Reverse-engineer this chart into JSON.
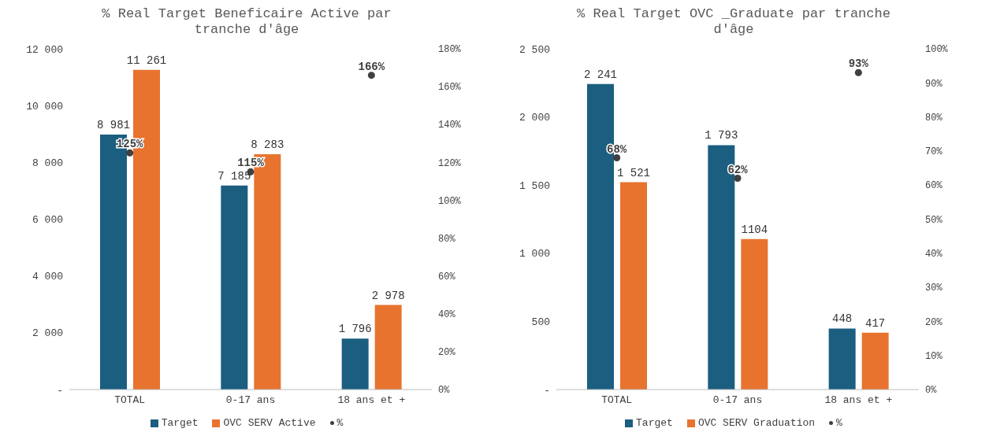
{
  "chart_data": [
    {
      "type": "bar",
      "title": "% Real Target Beneficaire Active par tranche d'âge",
      "categories": [
        "TOTAL",
        "0-17 ans",
        "18 ans et +"
      ],
      "series": [
        {
          "name": "Target",
          "color": "#1b5e80",
          "values": [
            8981,
            7185,
            1796
          ],
          "value_labels": [
            "8 981",
            "7 185",
            "1 796"
          ]
        },
        {
          "name": "OVC SERV Active",
          "color": "#e8732f",
          "values": [
            11261,
            8283,
            2978
          ],
          "value_labels": [
            "11 261",
            "8 283",
            "2 978"
          ]
        },
        {
          "name": "%",
          "type": "scatter",
          "marker": "circle",
          "axis": "y2",
          "color": "#404040",
          "values": [
            125,
            115,
            166
          ],
          "value_labels": [
            "125%",
            "115%",
            "166%"
          ]
        }
      ],
      "ylim": [
        0,
        12000
      ],
      "yticks": [
        {
          "value": 0,
          "label": "-"
        },
        {
          "value": 2000,
          "label": "2 000"
        },
        {
          "value": 4000,
          "label": "4 000"
        },
        {
          "value": 6000,
          "label": "6 000"
        },
        {
          "value": 8000,
          "label": "8 000"
        },
        {
          "value": 10000,
          "label": "10 000"
        },
        {
          "value": 12000,
          "label": "12 000"
        }
      ],
      "y2lim": [
        0,
        180
      ],
      "y2ticks": [
        {
          "value": 0,
          "label": "0%"
        },
        {
          "value": 20,
          "label": "20%"
        },
        {
          "value": 40,
          "label": "40%"
        },
        {
          "value": 60,
          "label": "60%"
        },
        {
          "value": 80,
          "label": "80%"
        },
        {
          "value": 100,
          "label": "100%"
        },
        {
          "value": 120,
          "label": "120%"
        },
        {
          "value": 140,
          "label": "140%"
        },
        {
          "value": 160,
          "label": "160%"
        },
        {
          "value": 180,
          "label": "180%"
        }
      ],
      "grid": false,
      "legend": "bottom"
    },
    {
      "type": "bar",
      "title": "% Real Target OVC _Graduate par tranche d'âge",
      "categories": [
        "TOTAL",
        "0-17 ans",
        "18 ans et +"
      ],
      "series": [
        {
          "name": "Target",
          "color": "#1b5e80",
          "values": [
            2241,
            1793,
            448
          ],
          "value_labels": [
            "2 241",
            "1 793",
            "448"
          ]
        },
        {
          "name": "OVC SERV Graduation",
          "color": "#e8732f",
          "values": [
            1521,
            1104,
            417
          ],
          "value_labels": [
            "1 521",
            "1104",
            "417"
          ]
        },
        {
          "name": "%",
          "type": "scatter",
          "marker": "circle",
          "axis": "y2",
          "color": "#404040",
          "values": [
            68,
            62,
            93
          ],
          "value_labels": [
            "68%",
            "62%",
            "93%"
          ]
        }
      ],
      "ylim": [
        0,
        2500
      ],
      "yticks": [
        {
          "value": 0,
          "label": "-"
        },
        {
          "value": 500,
          "label": "500"
        },
        {
          "value": 1000,
          "label": "1 000"
        },
        {
          "value": 1500,
          "label": "1 500"
        },
        {
          "value": 2000,
          "label": "2 000"
        },
        {
          "value": 2500,
          "label": "2 500"
        }
      ],
      "y2lim": [
        0,
        100
      ],
      "y2ticks": [
        {
          "value": 0,
          "label": "0%"
        },
        {
          "value": 10,
          "label": "10%"
        },
        {
          "value": 20,
          "label": "20%"
        },
        {
          "value": 30,
          "label": "30%"
        },
        {
          "value": 40,
          "label": "40%"
        },
        {
          "value": 50,
          "label": "50%"
        },
        {
          "value": 60,
          "label": "60%"
        },
        {
          "value": 70,
          "label": "70%"
        },
        {
          "value": 80,
          "label": "80%"
        },
        {
          "value": 90,
          "label": "90%"
        },
        {
          "value": 100,
          "label": "100%"
        }
      ],
      "grid": false,
      "legend": "bottom"
    }
  ]
}
